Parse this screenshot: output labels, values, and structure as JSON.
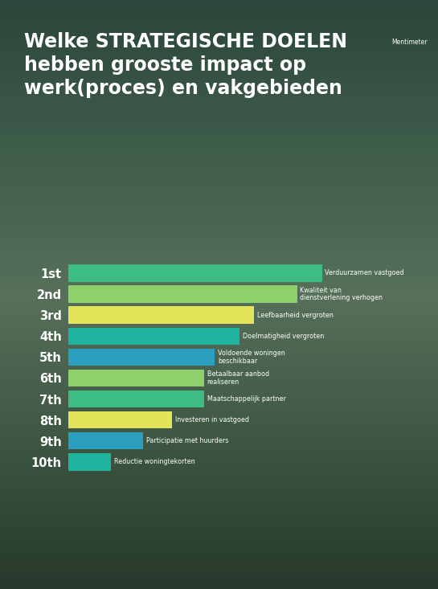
{
  "chart_data": {
    "type": "bar",
    "orientation": "horizontal",
    "title": "Welke STRATEGISCHE DOELEN\nhebben grooste impact op\nwerk(proces) en vakgebieden",
    "logo": "Mentimeter",
    "ranks": [
      "1st",
      "2nd",
      "3rd",
      "4th",
      "5th",
      "6th",
      "7th",
      "8th",
      "9th",
      "10th"
    ],
    "categories": [
      "Verduurzamen vastgoed",
      "Kwaliteit van\ndienstverlening verhogen",
      "Leefbaarheid vergroten",
      "Doelmatigheid vergroten",
      "Voldoende woningen\nbeschikbaar",
      "Betaalbaar aanbod\nrealiseren",
      "Maatschappelijk partner",
      "Investeren in vastgoed",
      "Participatie met huurders",
      "Reductie woningtekorten"
    ],
    "values": [
      71,
      64,
      52,
      48,
      41,
      38,
      38,
      29,
      21,
      12
    ],
    "colors": [
      "#3dbd84",
      "#8ed16b",
      "#e4e45a",
      "#1fb3a0",
      "#2a9fc0",
      "#8ed16b",
      "#3dbd84",
      "#e4e45a",
      "#2a9fc0",
      "#1fb3a0"
    ],
    "xlim": [
      0,
      100
    ],
    "tick_labels": "y",
    "grid": false
  }
}
